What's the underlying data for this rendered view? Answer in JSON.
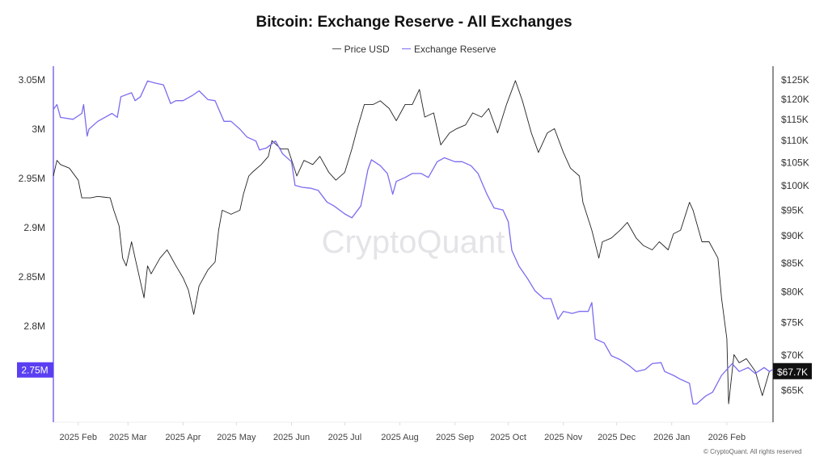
{
  "chart_data": {
    "type": "line",
    "title": "Bitcoin: Exchange Reserve - All Exchanges",
    "legend": [
      "Price USD",
      "Exchange Reserve"
    ],
    "legend_placement": "top-center",
    "watermark": "CryptoQuant",
    "footer": "© CryptoQuant. All rights reserved",
    "grid": false,
    "x_ticks": [
      "2025 Feb",
      "2025 Mar",
      "2025 Apr",
      "2025 May",
      "2025 Jun",
      "2025 Jul",
      "2025 Aug",
      "2025 Sep",
      "2025 Oct",
      "2025 Nov",
      "2025 Dec",
      "2026 Jan",
      "2026 Feb"
    ],
    "x_tick_dates": [
      "2025-02-01",
      "2025-03-01",
      "2025-04-01",
      "2025-05-01",
      "2025-06-01",
      "2025-07-01",
      "2025-08-01",
      "2025-09-01",
      "2025-10-01",
      "2025-11-01",
      "2025-12-01",
      "2026-01-01",
      "2026-02-01"
    ],
    "xlim": [
      "2025-01-18",
      "2026-02-27"
    ],
    "left_axis": {
      "unit": "BTC",
      "ticks": [
        "3.05M",
        "3M",
        "2.95M",
        "2.9M",
        "2.85M",
        "2.8M",
        "2.75M"
      ],
      "tick_values": [
        3.05,
        3.0,
        2.95,
        2.9,
        2.85,
        2.8,
        2.75
      ],
      "ylim": [
        2.7025,
        3.0615
      ],
      "current_label": "2.75M",
      "color": "#7b6cf0",
      "label_bg": "#5a3ff2"
    },
    "right_axis": {
      "scale": "log",
      "ticks": [
        "$125K",
        "$120K",
        "$115K",
        "$110K",
        "$105K",
        "$100K",
        "$95K",
        "$90K",
        "$85K",
        "$80K",
        "$75K",
        "$70K",
        "$65K"
      ],
      "tick_values": [
        125,
        120,
        115,
        110,
        105,
        100,
        95,
        90,
        85,
        80,
        75,
        70,
        65
      ],
      "ylim": [
        60.8,
        128
      ],
      "current_label": "$67.7K",
      "color": "#111111"
    },
    "series": [
      {
        "name": "Price USD",
        "axis": "right",
        "unit": "K USD",
        "color": "#222222",
        "points": [
          [
            "2025-01-18",
            102.1
          ],
          [
            "2025-01-20",
            105.5
          ],
          [
            "2025-01-22",
            104.6
          ],
          [
            "2025-01-27",
            103.8
          ],
          [
            "2025-02-01",
            101.2
          ],
          [
            "2025-02-03",
            97.5
          ],
          [
            "2025-02-08",
            97.5
          ],
          [
            "2025-02-12",
            97.8
          ],
          [
            "2025-02-19",
            97.5
          ],
          [
            "2025-02-21",
            95.0
          ],
          [
            "2025-02-24",
            91.9
          ],
          [
            "2025-02-26",
            85.9
          ],
          [
            "2025-02-28",
            84.5
          ],
          [
            "2025-03-03",
            88.9
          ],
          [
            "2025-03-05",
            85.9
          ],
          [
            "2025-03-07",
            83.1
          ],
          [
            "2025-03-10",
            79.0
          ],
          [
            "2025-03-12",
            84.5
          ],
          [
            "2025-03-14",
            83.1
          ],
          [
            "2025-03-19",
            85.9
          ],
          [
            "2025-03-23",
            87.4
          ],
          [
            "2025-03-28",
            84.5
          ],
          [
            "2025-04-01",
            82.4
          ],
          [
            "2025-04-04",
            80.3
          ],
          [
            "2025-04-07",
            76.3
          ],
          [
            "2025-04-10",
            81.0
          ],
          [
            "2025-04-15",
            83.8
          ],
          [
            "2025-04-19",
            85.2
          ],
          [
            "2025-04-21",
            91.1
          ],
          [
            "2025-04-23",
            95.0
          ],
          [
            "2025-04-28",
            94.2
          ],
          [
            "2025-05-03",
            95.0
          ],
          [
            "2025-05-05",
            98.3
          ],
          [
            "2025-05-08",
            102.1
          ],
          [
            "2025-05-10",
            102.9
          ],
          [
            "2025-05-15",
            104.6
          ],
          [
            "2025-05-19",
            106.4
          ],
          [
            "2025-05-21",
            110.0
          ],
          [
            "2025-05-26",
            108.1
          ],
          [
            "2025-05-30",
            108.1
          ],
          [
            "2025-06-04",
            102.1
          ],
          [
            "2025-06-08",
            105.5
          ],
          [
            "2025-06-13",
            104.6
          ],
          [
            "2025-06-17",
            106.4
          ],
          [
            "2025-06-22",
            102.9
          ],
          [
            "2025-06-26",
            101.2
          ],
          [
            "2025-07-01",
            102.9
          ],
          [
            "2025-07-05",
            108.1
          ],
          [
            "2025-07-08",
            112.8
          ],
          [
            "2025-07-12",
            118.7
          ],
          [
            "2025-07-17",
            118.7
          ],
          [
            "2025-07-21",
            119.6
          ],
          [
            "2025-07-26",
            117.7
          ],
          [
            "2025-07-30",
            114.7
          ],
          [
            "2025-08-04",
            118.7
          ],
          [
            "2025-08-08",
            118.7
          ],
          [
            "2025-08-12",
            122.5
          ],
          [
            "2025-08-15",
            115.6
          ],
          [
            "2025-08-20",
            116.6
          ],
          [
            "2025-08-24",
            109.0
          ],
          [
            "2025-08-29",
            111.8
          ],
          [
            "2025-09-02",
            112.8
          ],
          [
            "2025-09-07",
            113.7
          ],
          [
            "2025-09-11",
            116.6
          ],
          [
            "2025-09-16",
            115.6
          ],
          [
            "2025-09-20",
            117.7
          ],
          [
            "2025-09-25",
            111.8
          ],
          [
            "2025-09-30",
            118.7
          ],
          [
            "2025-10-05",
            124.8
          ],
          [
            "2025-10-09",
            119.6
          ],
          [
            "2025-10-14",
            111.8
          ],
          [
            "2025-10-18",
            107.3
          ],
          [
            "2025-10-23",
            111.8
          ],
          [
            "2025-10-27",
            112.8
          ],
          [
            "2025-11-01",
            107.3
          ],
          [
            "2025-11-05",
            103.8
          ],
          [
            "2025-11-10",
            102.1
          ],
          [
            "2025-11-12",
            96.6
          ],
          [
            "2025-11-17",
            91.1
          ],
          [
            "2025-11-21",
            85.9
          ],
          [
            "2025-11-23",
            88.9
          ],
          [
            "2025-11-28",
            89.6
          ],
          [
            "2025-12-03",
            91.1
          ],
          [
            "2025-12-07",
            92.6
          ],
          [
            "2025-12-12",
            89.6
          ],
          [
            "2025-12-16",
            88.2
          ],
          [
            "2025-12-21",
            87.4
          ],
          [
            "2025-12-25",
            88.9
          ],
          [
            "2025-12-30",
            87.4
          ],
          [
            "2026-01-02",
            90.4
          ],
          [
            "2026-01-06",
            91.1
          ],
          [
            "2026-01-11",
            96.6
          ],
          [
            "2026-01-13",
            95.0
          ],
          [
            "2026-01-18",
            88.9
          ],
          [
            "2026-01-22",
            88.9
          ],
          [
            "2026-01-27",
            85.9
          ],
          [
            "2026-01-29",
            79.0
          ],
          [
            "2026-02-01",
            72.5
          ],
          [
            "2026-02-02",
            63.2
          ],
          [
            "2026-02-05",
            70.1
          ],
          [
            "2026-02-08",
            68.9
          ],
          [
            "2026-02-12",
            69.5
          ],
          [
            "2026-02-17",
            67.7
          ],
          [
            "2026-02-21",
            64.3
          ],
          [
            "2026-02-25",
            67.7
          ]
        ]
      },
      {
        "name": "Exchange Reserve",
        "axis": "left",
        "unit": "M BTC",
        "color": "#7b6cf0",
        "points": [
          [
            "2025-01-18",
            3.02
          ],
          [
            "2025-01-20",
            3.025
          ],
          [
            "2025-01-22",
            3.012
          ],
          [
            "2025-01-29",
            3.01
          ],
          [
            "2025-02-03",
            3.016
          ],
          [
            "2025-02-04",
            3.025
          ],
          [
            "2025-02-06",
            2.993
          ],
          [
            "2025-02-07",
            3.0
          ],
          [
            "2025-02-12",
            3.008
          ],
          [
            "2025-02-16",
            3.012
          ],
          [
            "2025-02-20",
            3.016
          ],
          [
            "2025-02-23",
            3.012
          ],
          [
            "2025-02-25",
            3.033
          ],
          [
            "2025-03-03",
            3.037
          ],
          [
            "2025-03-05",
            3.029
          ],
          [
            "2025-03-08",
            3.033
          ],
          [
            "2025-03-12",
            3.049
          ],
          [
            "2025-03-16",
            3.047
          ],
          [
            "2025-03-21",
            3.045
          ],
          [
            "2025-03-25",
            3.026
          ],
          [
            "2025-03-28",
            3.029
          ],
          [
            "2025-04-01",
            3.029
          ],
          [
            "2025-04-06",
            3.034
          ],
          [
            "2025-04-10",
            3.039
          ],
          [
            "2025-04-15",
            3.03
          ],
          [
            "2025-04-19",
            3.029
          ],
          [
            "2025-04-24",
            3.008
          ],
          [
            "2025-04-28",
            3.008
          ],
          [
            "2025-05-03",
            3.0
          ],
          [
            "2025-05-07",
            2.992
          ],
          [
            "2025-05-12",
            2.988
          ],
          [
            "2025-05-14",
            2.979
          ],
          [
            "2025-05-18",
            2.981
          ],
          [
            "2025-05-23",
            2.988
          ],
          [
            "2025-05-27",
            2.975
          ],
          [
            "2025-06-01",
            2.967
          ],
          [
            "2025-06-03",
            2.943
          ],
          [
            "2025-06-07",
            2.941
          ],
          [
            "2025-06-12",
            2.94
          ],
          [
            "2025-06-16",
            2.938
          ],
          [
            "2025-06-21",
            2.926
          ],
          [
            "2025-06-25",
            2.922
          ],
          [
            "2025-07-01",
            2.914
          ],
          [
            "2025-07-05",
            2.91
          ],
          [
            "2025-07-10",
            2.922
          ],
          [
            "2025-07-14",
            2.959
          ],
          [
            "2025-07-16",
            2.969
          ],
          [
            "2025-07-21",
            2.963
          ],
          [
            "2025-07-25",
            2.955
          ],
          [
            "2025-07-28",
            2.934
          ],
          [
            "2025-07-30",
            2.947
          ],
          [
            "2025-08-04",
            2.951
          ],
          [
            "2025-08-08",
            2.955
          ],
          [
            "2025-08-13",
            2.955
          ],
          [
            "2025-08-17",
            2.951
          ],
          [
            "2025-08-22",
            2.967
          ],
          [
            "2025-08-26",
            2.971
          ],
          [
            "2025-09-01",
            2.967
          ],
          [
            "2025-09-05",
            2.967
          ],
          [
            "2025-09-10",
            2.963
          ],
          [
            "2025-09-14",
            2.955
          ],
          [
            "2025-09-19",
            2.934
          ],
          [
            "2025-09-23",
            2.92
          ],
          [
            "2025-09-28",
            2.918
          ],
          [
            "2025-10-01",
            2.906
          ],
          [
            "2025-10-03",
            2.877
          ],
          [
            "2025-10-07",
            2.861
          ],
          [
            "2025-10-12",
            2.848
          ],
          [
            "2025-10-16",
            2.836
          ],
          [
            "2025-10-21",
            2.828
          ],
          [
            "2025-10-25",
            2.828
          ],
          [
            "2025-10-29",
            2.807
          ],
          [
            "2025-11-01",
            2.815
          ],
          [
            "2025-11-06",
            2.813
          ],
          [
            "2025-11-10",
            2.815
          ],
          [
            "2025-11-15",
            2.815
          ],
          [
            "2025-11-17",
            2.824
          ],
          [
            "2025-11-19",
            2.787
          ],
          [
            "2025-11-24",
            2.783
          ],
          [
            "2025-11-28",
            2.77
          ],
          [
            "2025-12-03",
            2.766
          ],
          [
            "2025-12-08",
            2.76
          ],
          [
            "2025-12-12",
            2.754
          ],
          [
            "2025-12-17",
            2.756
          ],
          [
            "2025-12-21",
            2.762
          ],
          [
            "2025-12-26",
            2.763
          ],
          [
            "2025-12-28",
            2.754
          ],
          [
            "2026-01-02",
            2.75
          ],
          [
            "2026-01-06",
            2.746
          ],
          [
            "2026-01-11",
            2.742
          ],
          [
            "2026-01-13",
            2.721
          ],
          [
            "2026-01-15",
            2.721
          ],
          [
            "2026-01-20",
            2.729
          ],
          [
            "2026-01-24",
            2.733
          ],
          [
            "2026-01-29",
            2.75
          ],
          [
            "2026-02-04",
            2.762
          ],
          [
            "2026-02-08",
            2.754
          ],
          [
            "2026-02-13",
            2.758
          ],
          [
            "2026-02-17",
            2.752
          ],
          [
            "2026-02-22",
            2.758
          ],
          [
            "2026-02-25",
            2.754
          ],
          [
            "2026-02-27",
            2.756
          ]
        ]
      }
    ]
  }
}
